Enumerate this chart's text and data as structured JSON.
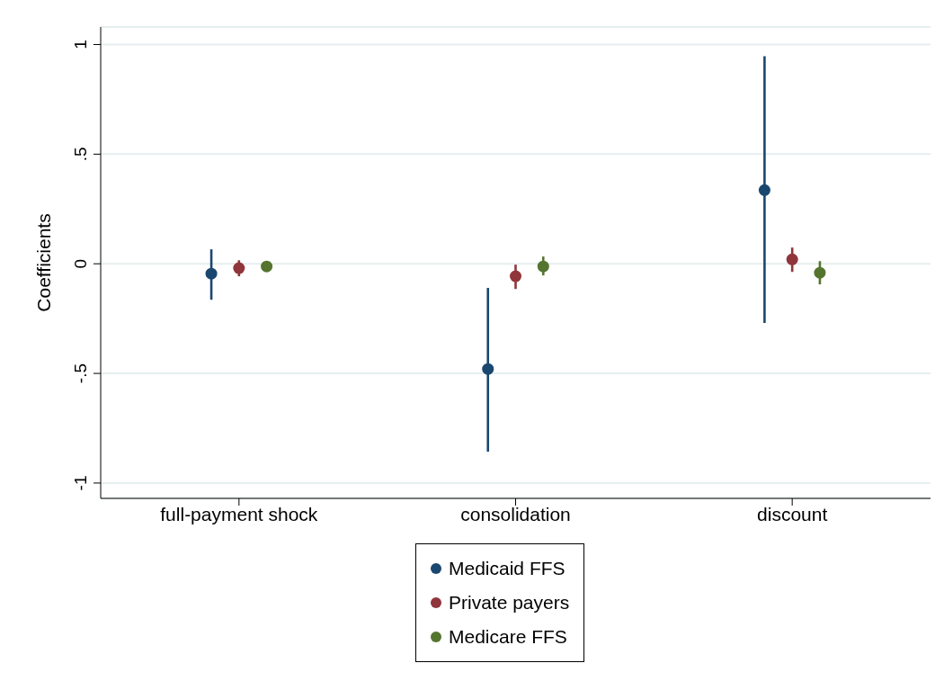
{
  "chart_data": {
    "type": "scatter",
    "ylabel": "Coefficients",
    "categories": [
      "full-payment shock",
      "consolidation",
      "discount"
    ],
    "series": [
      {
        "name": "Medicaid FFS",
        "color": "#1a476f",
        "values": [
          -0.045,
          -0.48,
          0.336
        ],
        "errors": [
          [
            -0.164,
            0.066
          ],
          [
            -0.857,
            -0.11
          ],
          [
            -0.27,
            0.947
          ]
        ]
      },
      {
        "name": "Private payers",
        "color": "#90353b",
        "values": [
          -0.02,
          -0.057,
          0.02
        ],
        "errors": [
          [
            -0.057,
            0.016
          ],
          [
            -0.115,
            -0.004
          ],
          [
            -0.037,
            0.074
          ]
        ]
      },
      {
        "name": "Medicare FFS",
        "color": "#55752f",
        "values": [
          -0.012,
          -0.012,
          -0.041
        ],
        "errors": [
          [
            -0.027,
            0.003
          ],
          [
            -0.053,
            0.033
          ],
          [
            -0.094,
            0.012
          ]
        ]
      }
    ],
    "ylim": [
      -1.07,
      1.08
    ],
    "yticks": [
      {
        "value": -1,
        "label": "-1"
      },
      {
        "value": -0.5,
        "label": "-.5"
      },
      0,
      {
        "value": 0.5,
        "label": ".5"
      },
      1
    ],
    "grid": "y",
    "legend": "bottom",
    "marker": "circle"
  }
}
